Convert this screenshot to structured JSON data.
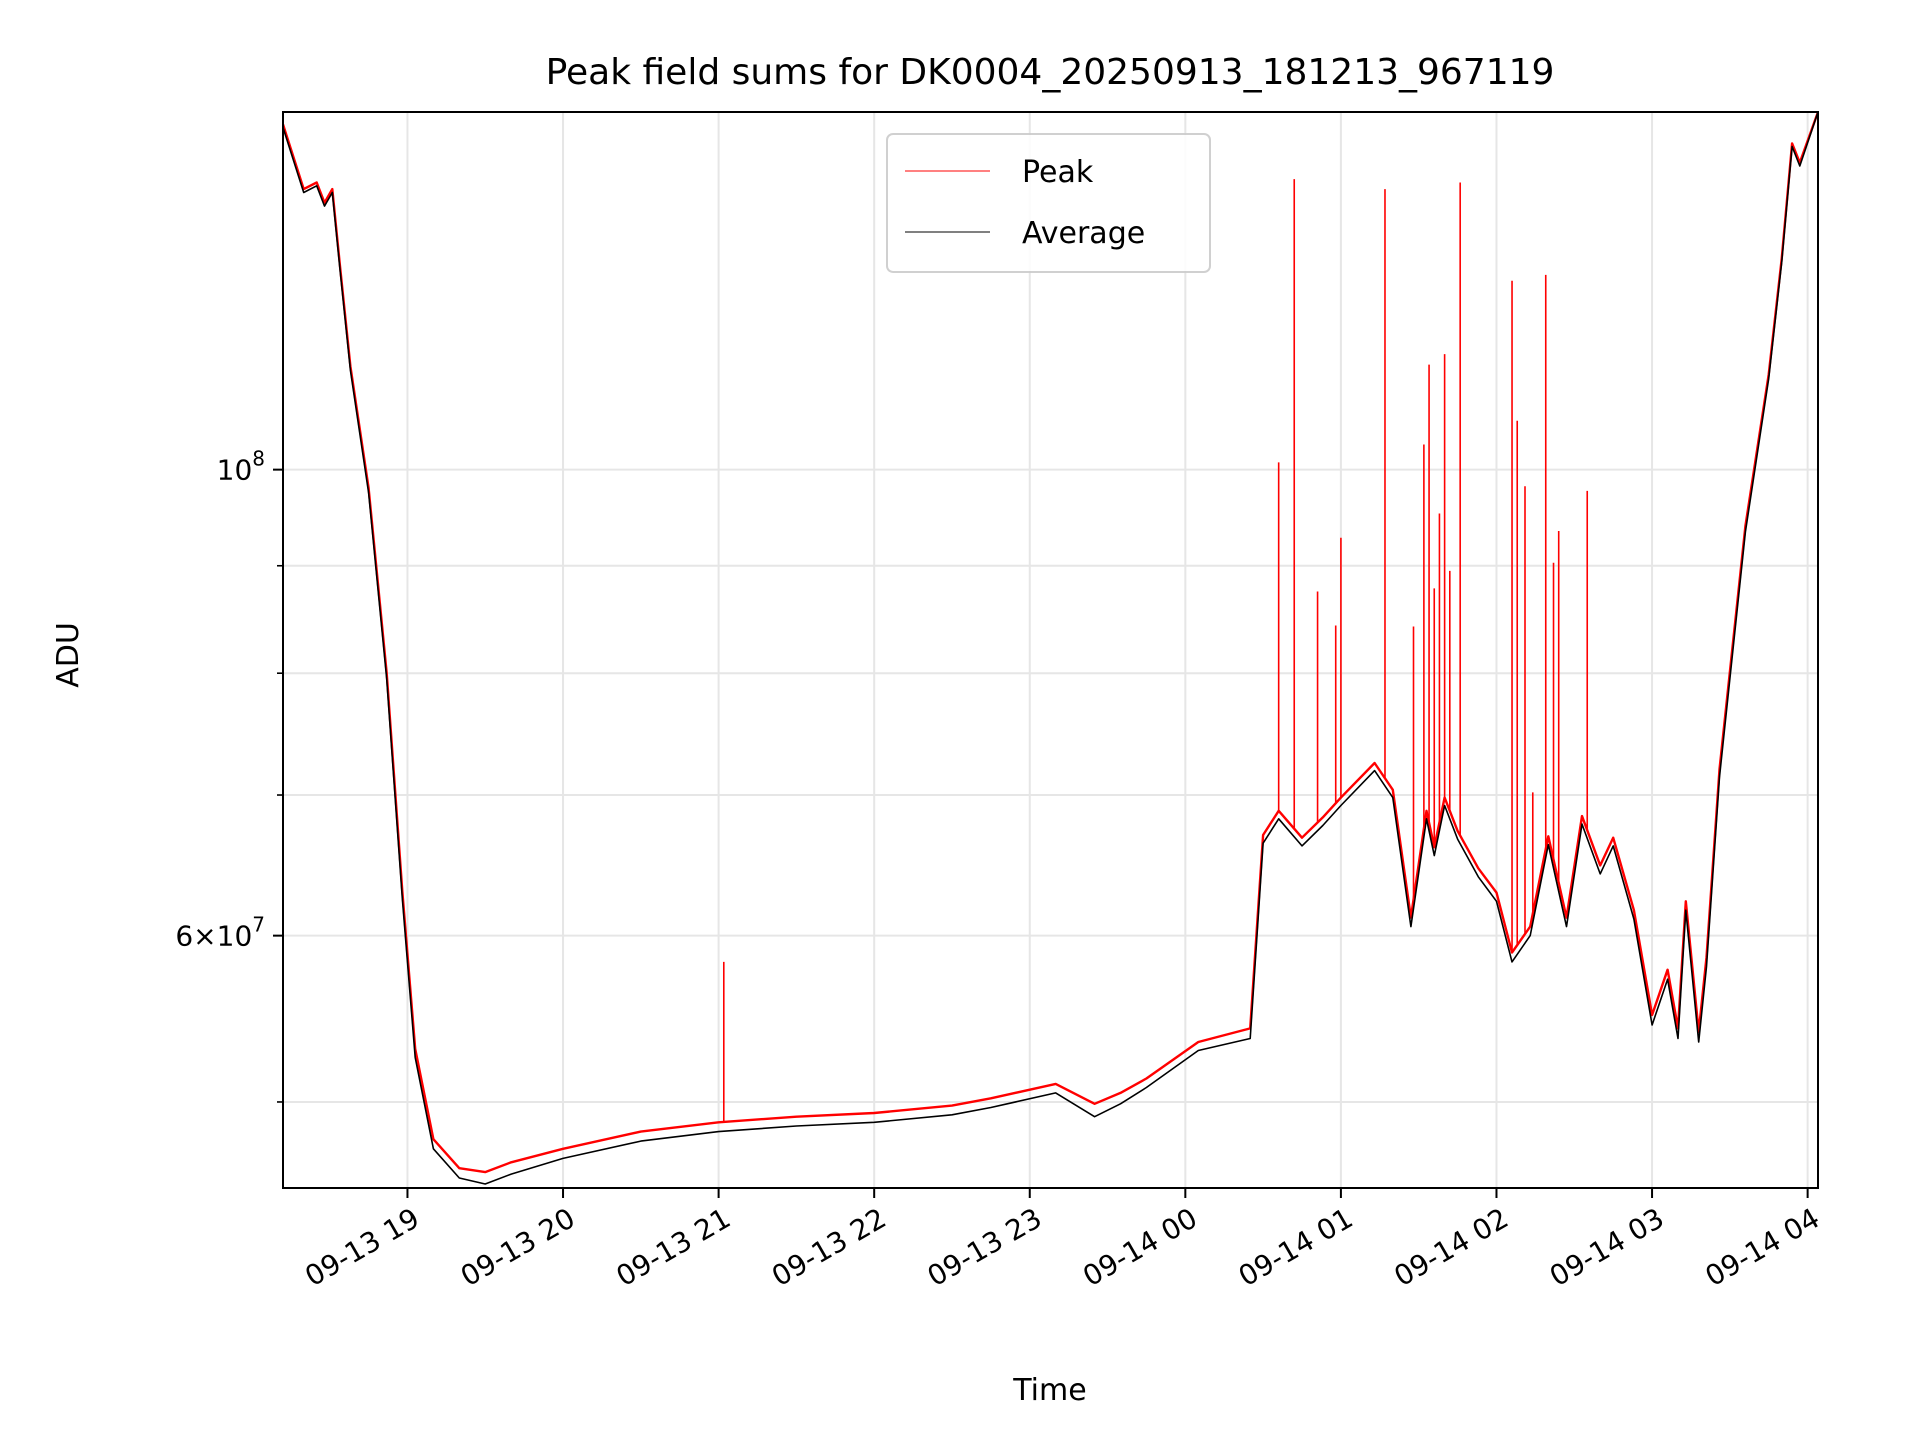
{
  "chart_data": {
    "type": "line",
    "title": "Peak field sums for DK0004_20250913_181213_967119",
    "xlabel": "Time",
    "ylabel": "ADU",
    "yscale": "log",
    "grid": true,
    "legend_position": "top-center",
    "xlim": [
      "09-13 18:12",
      "09-14 04:04"
    ],
    "ylim": [
      45500000,
      148000000
    ],
    "x_ticks": [
      "09-13 19",
      "09-13 20",
      "09-13 21",
      "09-13 22",
      "09-13 23",
      "09-14 00",
      "09-14 01",
      "09-14 02",
      "09-14 03",
      "09-14 04"
    ],
    "y_ticks": [
      {
        "value": 100000000,
        "base": "10",
        "exp": "8"
      },
      {
        "value": 60000000,
        "base": "6×10",
        "exp": "7"
      }
    ],
    "y_minor_ticks": [
      50000000,
      70000000,
      80000000,
      90000000
    ],
    "series": [
      {
        "name": "Peak",
        "color": "#ff0000",
        "x": [
          "09-13 18:12",
          "09-13 18:20",
          "09-13 18:25",
          "09-13 18:28",
          "09-13 18:31",
          "09-13 18:34",
          "09-13 18:38",
          "09-13 18:45",
          "09-13 18:52",
          "09-13 18:58",
          "09-13 19:03",
          "09-13 19:10",
          "09-13 19:20",
          "09-13 19:30",
          "09-13 19:40",
          "09-13 20:00",
          "09-13 20:30",
          "09-13 21:00",
          "09-13 21:30",
          "09-13 22:00",
          "09-13 22:30",
          "09-13 22:45",
          "09-13 23:10",
          "09-13 23:25",
          "09-13 23:35",
          "09-13 23:45",
          "09-14 00:05",
          "09-14 00:25",
          "09-14 00:30",
          "09-14 00:36",
          "09-14 00:45",
          "09-14 00:53",
          "09-14 01:00",
          "09-14 01:13",
          "09-14 01:20",
          "09-14 01:27",
          "09-14 01:33",
          "09-14 01:36",
          "09-14 01:40",
          "09-14 01:45",
          "09-14 01:53",
          "09-14 02:00",
          "09-14 02:06",
          "09-14 02:13",
          "09-14 02:20",
          "09-14 02:27",
          "09-14 02:33",
          "09-14 02:40",
          "09-14 02:45",
          "09-14 02:53",
          "09-14 03:00",
          "09-14 03:06",
          "09-14 03:10",
          "09-14 03:13",
          "09-14 03:18",
          "09-14 03:21",
          "09-14 03:26",
          "09-14 03:36",
          "09-14 03:45",
          "09-14 03:50",
          "09-14 03:54",
          "09-14 03:57",
          "09-14 04:04"
        ],
        "y": [
          146000000,
          136000000,
          137000000,
          134000000,
          136000000,
          125000000,
          112000000,
          98000000,
          80000000,
          63000000,
          53000000,
          48000000,
          46500000,
          46300000,
          46800000,
          47500000,
          48400000,
          48900000,
          49200000,
          49400000,
          49800000,
          50200000,
          51000000,
          49900000,
          50500000,
          51300000,
          53400000,
          54200000,
          67000000,
          68800000,
          66800000,
          68300000,
          69800000,
          72500000,
          70400000,
          61200000,
          68800000,
          66100000,
          69800000,
          67300000,
          64600000,
          62900000,
          58900000,
          60600000,
          66900000,
          61200000,
          68400000,
          64800000,
          66800000,
          61700000,
          55000000,
          57800000,
          54200000,
          62300000,
          54000000,
          58600000,
          72000000,
          94000000,
          111000000,
          126000000,
          143000000,
          140000000,
          148000000
        ]
      },
      {
        "name": "Average",
        "color": "#000000",
        "x": [
          "09-13 18:12",
          "09-13 18:20",
          "09-13 18:25",
          "09-13 18:28",
          "09-13 18:31",
          "09-13 18:34",
          "09-13 18:38",
          "09-13 18:45",
          "09-13 18:52",
          "09-13 18:58",
          "09-13 19:03",
          "09-13 19:10",
          "09-13 19:20",
          "09-13 19:30",
          "09-13 19:40",
          "09-13 20:00",
          "09-13 20:30",
          "09-13 21:00",
          "09-13 21:30",
          "09-13 22:00",
          "09-13 22:30",
          "09-13 22:45",
          "09-13 23:10",
          "09-13 23:25",
          "09-13 23:35",
          "09-13 23:45",
          "09-14 00:05",
          "09-14 00:25",
          "09-14 00:30",
          "09-14 00:36",
          "09-14 00:45",
          "09-14 00:53",
          "09-14 01:00",
          "09-14 01:13",
          "09-14 01:20",
          "09-14 01:27",
          "09-14 01:33",
          "09-14 01:36",
          "09-14 01:40",
          "09-14 01:45",
          "09-14 01:53",
          "09-14 02:00",
          "09-14 02:06",
          "09-14 02:13",
          "09-14 02:20",
          "09-14 02:27",
          "09-14 02:33",
          "09-14 02:40",
          "09-14 02:45",
          "09-14 02:53",
          "09-14 03:00",
          "09-14 03:06",
          "09-14 03:10",
          "09-14 03:13",
          "09-14 03:18",
          "09-14 03:21",
          "09-14 03:26",
          "09-14 03:36",
          "09-14 03:45",
          "09-14 03:50",
          "09-14 03:54",
          "09-14 03:57",
          "09-14 04:04"
        ],
        "y": [
          145500000,
          135500000,
          136500000,
          133500000,
          135500000,
          124500000,
          111500000,
          97500000,
          79500000,
          62500000,
          52500000,
          47500000,
          46000000,
          45700000,
          46200000,
          47000000,
          47900000,
          48400000,
          48700000,
          48900000,
          49300000,
          49700000,
          50500000,
          49200000,
          49900000,
          50800000,
          52900000,
          53600000,
          66400000,
          68200000,
          66200000,
          67700000,
          69200000,
          71900000,
          69800000,
          60600000,
          68200000,
          65500000,
          69200000,
          66700000,
          64000000,
          62300000,
          58300000,
          60000000,
          66300000,
          60600000,
          67800000,
          64200000,
          66200000,
          61100000,
          54400000,
          57200000,
          53600000,
          61700000,
          53400000,
          58000000,
          71400000,
          93400000,
          110500000,
          125500000,
          142500000,
          139500000,
          148000000
        ]
      }
    ],
    "peak_spikes": [
      {
        "x": "09-13 21:02",
        "y": 58300000
      },
      {
        "x": "09-14 00:36",
        "y": 100800000
      },
      {
        "x": "09-14 00:42",
        "y": 137500000
      },
      {
        "x": "09-14 00:51",
        "y": 87500000
      },
      {
        "x": "09-14 00:58",
        "y": 84300000
      },
      {
        "x": "09-14 01:00",
        "y": 92800000
      },
      {
        "x": "09-14 01:17",
        "y": 136000000
      },
      {
        "x": "09-14 01:28",
        "y": 84200000
      },
      {
        "x": "09-14 01:32",
        "y": 102800000
      },
      {
        "x": "09-14 01:34",
        "y": 112200000
      },
      {
        "x": "09-14 01:36",
        "y": 87800000
      },
      {
        "x": "09-14 01:38",
        "y": 95300000
      },
      {
        "x": "09-14 01:40",
        "y": 113500000
      },
      {
        "x": "09-14 01:42",
        "y": 89500000
      },
      {
        "x": "09-14 01:46",
        "y": 137000000
      },
      {
        "x": "09-14 02:06",
        "y": 123000000
      },
      {
        "x": "09-14 02:08",
        "y": 105500000
      },
      {
        "x": "09-14 02:11",
        "y": 98200000
      },
      {
        "x": "09-14 02:14",
        "y": 70200000
      },
      {
        "x": "09-14 02:19",
        "y": 123800000
      },
      {
        "x": "09-14 02:22",
        "y": 90300000
      },
      {
        "x": "09-14 02:24",
        "y": 93500000
      },
      {
        "x": "09-14 02:35",
        "y": 97700000
      }
    ]
  }
}
